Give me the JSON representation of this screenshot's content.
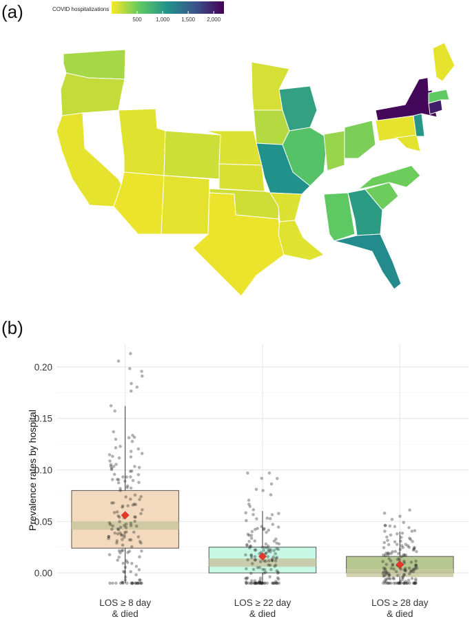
{
  "panel_a": {
    "label": "(a)",
    "legend": {
      "title": "COVID hospitalizations",
      "ticks": [
        {
          "label": "500",
          "value": 500
        },
        {
          "label": "1,000",
          "value": 1000
        },
        {
          "label": "1,500",
          "value": 1500
        },
        {
          "label": "2,000",
          "value": 2000
        }
      ],
      "min": 0,
      "max": 2200
    },
    "colors": {
      "low": "#fde725",
      "high": "#440154",
      "no_data": "#ffffff",
      "border": "#e6e6e6"
    }
  },
  "panel_b": {
    "label": "(b)"
  },
  "chart_data": [
    {
      "type": "heatmap",
      "subtype": "choropleth-map",
      "legend_title": "COVID hospitalizations",
      "color_scale": "viridis (reversed)",
      "scale_range": [
        0,
        2200
      ],
      "legend_ticks": [
        500,
        1000,
        1500,
        2000
      ],
      "regions": [
        {
          "name": "Washington",
          "value": 300
        },
        {
          "name": "Oregon",
          "value": 200
        },
        {
          "name": "California",
          "value": 80
        },
        {
          "name": "Arizona",
          "value": 60
        },
        {
          "name": "New Mexico",
          "value": 90
        },
        {
          "name": "Colorado",
          "value": 170
        },
        {
          "name": "Utah",
          "value": 100
        },
        {
          "name": "Kansas",
          "value": 120
        },
        {
          "name": "Nebraska",
          "value": 110
        },
        {
          "name": "Oklahoma",
          "value": 160
        },
        {
          "name": "Texas",
          "value": 60
        },
        {
          "name": "Minnesota",
          "value": 140
        },
        {
          "name": "Iowa",
          "value": 250
        },
        {
          "name": "Missouri",
          "value": 1100
        },
        {
          "name": "Arkansas",
          "value": 110
        },
        {
          "name": "Louisiana",
          "value": 100
        },
        {
          "name": "Wisconsin",
          "value": 950
        },
        {
          "name": "Illinois",
          "value": 620
        },
        {
          "name": "Indiana",
          "value": 350
        },
        {
          "name": "Ohio",
          "value": 450
        },
        {
          "name": "Michigan",
          "value": 0
        },
        {
          "name": "Alabama",
          "value": 550
        },
        {
          "name": "Mississippi",
          "value": 0
        },
        {
          "name": "Georgia",
          "value": 1000
        },
        {
          "name": "Florida",
          "value": 1150
        },
        {
          "name": "South Carolina",
          "value": 500
        },
        {
          "name": "North Carolina",
          "value": 500
        },
        {
          "name": "Pennsylvania",
          "value": 80
        },
        {
          "name": "New York",
          "value": 2150
        },
        {
          "name": "New Jersey",
          "value": 1050
        },
        {
          "name": "Maryland",
          "value": 90
        },
        {
          "name": "Connecticut",
          "value": 2000
        },
        {
          "name": "Massachusetts",
          "value": 550
        },
        {
          "name": "Vermont",
          "value": 0
        },
        {
          "name": "New Hampshire",
          "value": 0
        },
        {
          "name": "Maine",
          "value": 80
        }
      ]
    },
    {
      "type": "box",
      "xlabel": "",
      "ylabel": "Prevalence rates by hospital",
      "ylim": [
        -0.012,
        0.222
      ],
      "yticks": [
        "0.00",
        "0.05",
        "0.10",
        "0.15",
        "0.20"
      ],
      "grid": true,
      "legend": "none",
      "categories": [
        "LOS ≥ 8 day\n& died",
        "LOS ≥ 22 day\n& died",
        "LOS ≥ 28 day\n& died"
      ],
      "series": [
        {
          "category": "LOS ≥ 8 day\n& died",
          "color": "#f3d9bd",
          "q1": 0.024,
          "median": 0.046,
          "q3": 0.08,
          "whisker_low": -0.01,
          "whisker_high": 0.162,
          "mean": 0.056,
          "points_count": 160,
          "points_range": [
            -0.01,
            0.213
          ]
        },
        {
          "category": "LOS ≥ 22 day\n& died",
          "color": "#c7f8e6",
          "q1": 0.0,
          "median": 0.01,
          "q3": 0.025,
          "whisker_low": -0.01,
          "whisker_high": 0.06,
          "mean": 0.016,
          "points_count": 150,
          "points_range": [
            -0.01,
            0.097
          ]
        },
        {
          "category": "LOS ≥ 28 day\n& died",
          "color": "#b7c790",
          "q1": 0.0,
          "median": 0.0,
          "q3": 0.016,
          "whisker_low": -0.01,
          "whisker_high": 0.04,
          "mean": 0.008,
          "points_count": 150,
          "points_range": [
            -0.01,
            0.061
          ]
        }
      ]
    }
  ]
}
